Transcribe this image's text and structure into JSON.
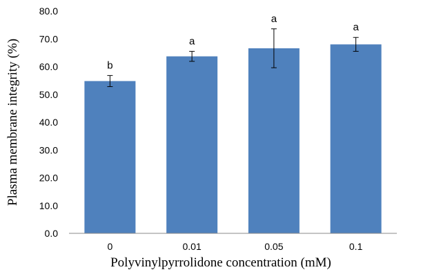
{
  "chart_data": {
    "type": "bar",
    "categories": [
      "0",
      "0.01",
      "0.05",
      "0.1"
    ],
    "values": [
      54.8,
      63.7,
      66.6,
      68.0
    ],
    "error": [
      2.0,
      1.8,
      7.0,
      2.5
    ],
    "significance_labels": [
      "b",
      "a",
      "a",
      "a"
    ],
    "xlabel": "Polyvinylpyrrolidone concentration (mM)",
    "ylabel": "Plasma membrane integrity  (%)",
    "ylim": [
      0,
      80
    ],
    "yticks": [
      "0.0",
      "10.0",
      "20.0",
      "30.0",
      "40.0",
      "50.0",
      "60.0",
      "70.0",
      "80.0"
    ],
    "bar_color": "#4f81bd",
    "grid": false,
    "legend": false
  }
}
